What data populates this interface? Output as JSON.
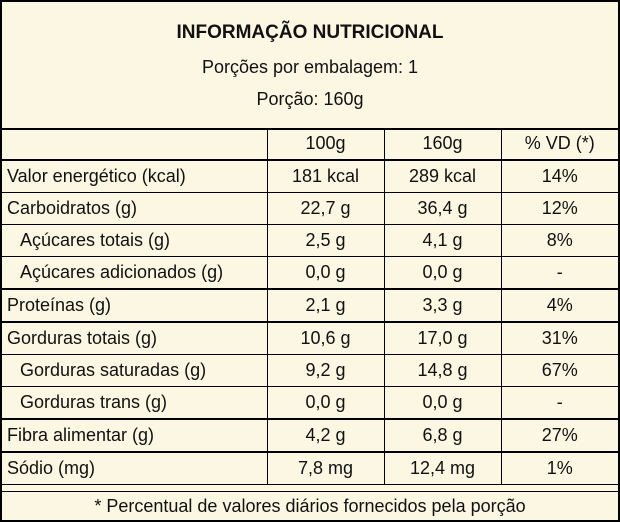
{
  "header": {
    "title": "INFORMAÇÃO NUTRICIONAL",
    "servings_per_package": "Porções por embalagem: 1",
    "serving_size": "Porção: 160g"
  },
  "columns": [
    "",
    "100g",
    "160g",
    "% VD (*)"
  ],
  "rows": [
    {
      "name": "Valor energético (kcal)",
      "per100": "181 kcal",
      "perServing": "289 kcal",
      "vd": "14%"
    },
    {
      "name": "Carboidratos (g)",
      "per100": "22,7 g",
      "perServing": "36,4 g",
      "vd": "12%"
    },
    {
      "name": "Açúcares totais (g)",
      "per100": "2,5 g",
      "perServing": "4,1 g",
      "vd": "8%"
    },
    {
      "name": "Açúcares adicionados (g)",
      "per100": "0,0 g",
      "perServing": "0,0 g",
      "vd": "-"
    },
    {
      "name": "Proteínas (g)",
      "per100": "2,1 g",
      "perServing": "3,3 g",
      "vd": "4%"
    },
    {
      "name": "Gorduras totais (g)",
      "per100": "10,6 g",
      "perServing": "17,0 g",
      "vd": "31%"
    },
    {
      "name": "Gorduras saturadas (g)",
      "per100": "9,2 g",
      "perServing": "14,8 g",
      "vd": "67%"
    },
    {
      "name": "Gorduras trans (g)",
      "per100": "0,0 g",
      "perServing": "0,0 g",
      "vd": "-"
    },
    {
      "name": "Fibra alimentar (g)",
      "per100": "4,2 g",
      "perServing": "6,8 g",
      "vd": "27%"
    },
    {
      "name": "Sódio (mg)",
      "per100": "7,8 mg",
      "perServing": "12,4 mg",
      "vd": "1%"
    }
  ],
  "footnote": "* Percentual de valores diários fornecidos pela porção",
  "colors": {
    "background": "#fbf7e2",
    "border": "#000000"
  }
}
